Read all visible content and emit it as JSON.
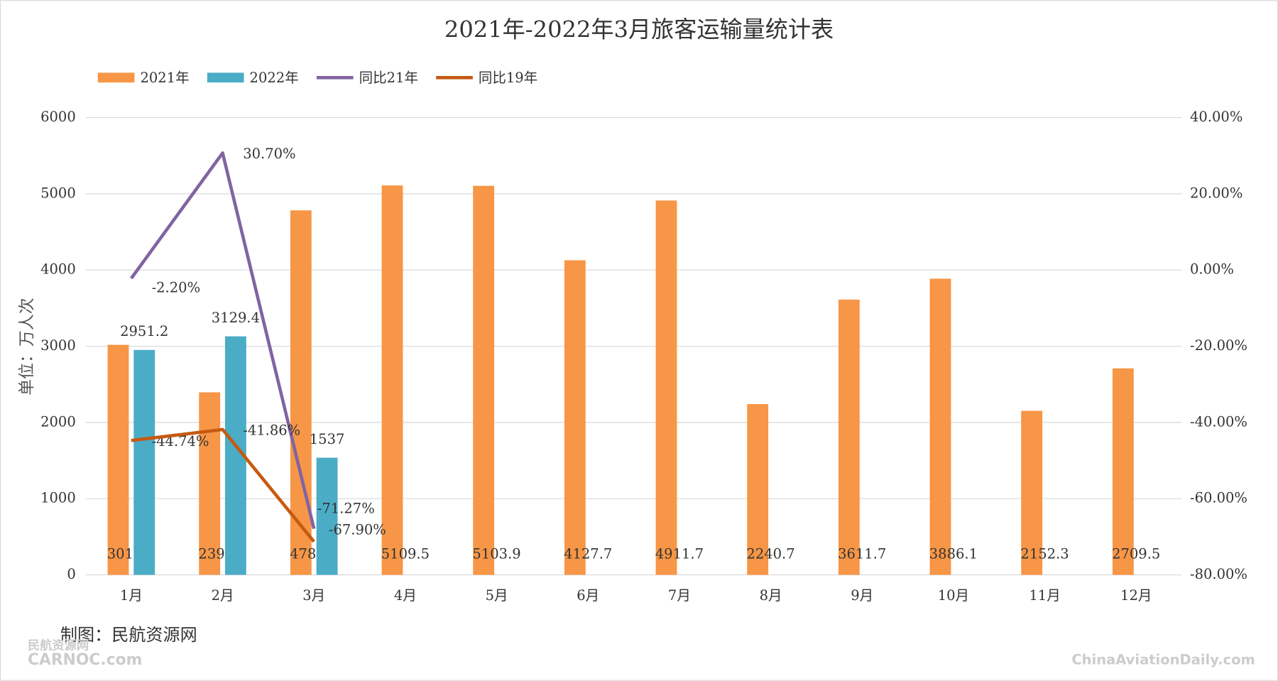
{
  "chart_data": {
    "type": "bar",
    "title": "2021年-2022年3月旅客运输量统计表",
    "y_label": "单位：万人次",
    "categories": [
      "1月",
      "2月",
      "3月",
      "4月",
      "5月",
      "6月",
      "7月",
      "8月",
      "9月",
      "10月",
      "11月",
      "12月"
    ],
    "series": [
      {
        "name": "2021年",
        "color": "#f79646",
        "values": [
          3018.1,
          2394.9,
          4782.2,
          5109.5,
          5103.9,
          4127.7,
          4911.7,
          2240.7,
          3611.7,
          3886.1,
          2152.3,
          2709.5
        ]
      },
      {
        "name": "2022年",
        "color": "#4bacc6",
        "values": [
          2951.2,
          3129.4,
          1537,
          null,
          null,
          null,
          null,
          null,
          null,
          null,
          null,
          null
        ]
      },
      {
        "name": "同比21年",
        "color": "#8064a2",
        "axis": "y2",
        "values": [
          -2.2,
          30.7,
          -67.9,
          null,
          null,
          null,
          null,
          null,
          null,
          null,
          null,
          null
        ],
        "value_labels": [
          "-2.20%",
          "30.70%",
          "-67.90%",
          null,
          null,
          null,
          null,
          null,
          null,
          null,
          null,
          null
        ]
      },
      {
        "name": "同比19年",
        "color": "#c55a11",
        "axis": "y2",
        "values": [
          -44.74,
          -41.86,
          -71.27,
          null,
          null,
          null,
          null,
          null,
          null,
          null,
          null,
          null
        ],
        "value_labels": [
          "-44.74%",
          "-41.86%",
          "-71.27%",
          null,
          null,
          null,
          null,
          null,
          null,
          null,
          null,
          null
        ]
      }
    ],
    "ylim": [
      0,
      6000
    ],
    "yticks": [
      0,
      1000,
      2000,
      3000,
      4000,
      5000,
      6000
    ],
    "y2lim": [
      -80,
      40
    ],
    "y2ticks": [
      {
        "value": -80,
        "label": "-80.00%"
      },
      {
        "value": -60,
        "label": "-60.00%"
      },
      {
        "value": -40,
        "label": "-40.00%"
      },
      {
        "value": -20,
        "label": "-20.00%"
      },
      {
        "value": 0,
        "label": "0.00%"
      },
      {
        "value": 20,
        "label": "20.00%"
      },
      {
        "value": 40,
        "label": "40.00%"
      }
    ],
    "grid": true,
    "legend": "top-left"
  },
  "footer": "制图：民航资源网",
  "watermark_left": "民航资源网",
  "watermark_left_sub": "CARNOC.com",
  "watermark_right": "ChinaAviationDaily.com"
}
